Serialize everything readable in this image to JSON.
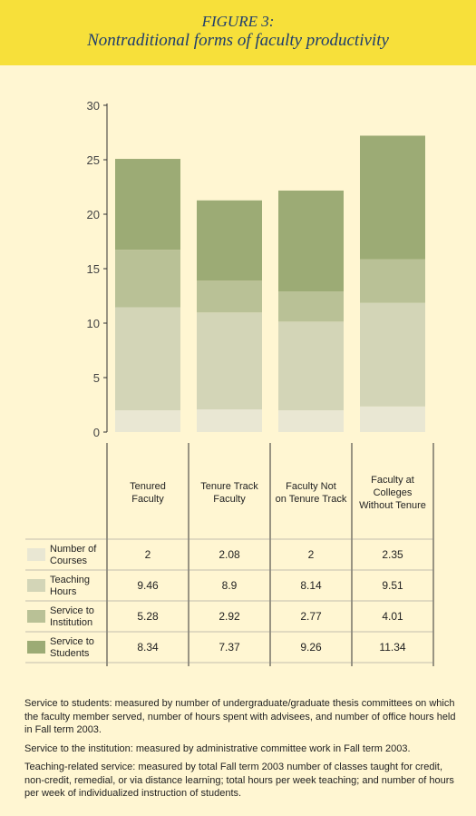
{
  "header": {
    "figure_label": "FIGURE 3:",
    "title": "Nontraditional forms of faculty productivity"
  },
  "colors": {
    "header_bg": "#f7e03a",
    "page_bg": "#fff6d2",
    "title_text": "#1e3d6e",
    "number_of_courses": "#e9e7d3",
    "teaching_hours": "#d3d5b7",
    "service_to_institution": "#b9c196",
    "service_to_students": "#9cab75"
  },
  "chart_data": {
    "type": "bar",
    "stacked": true,
    "categories": [
      "Tenured Faculty",
      "Tenure Track Faculty",
      "Faculty Not on Tenure Track",
      "Faculty at Colleges Without Tenure"
    ],
    "category_lines": [
      [
        "Tenured",
        "Faculty"
      ],
      [
        "Tenure Track",
        "Faculty"
      ],
      [
        "Faculty Not",
        "on Tenure Track"
      ],
      [
        "Faculty at",
        "Colleges",
        "Without Tenure"
      ]
    ],
    "series": [
      {
        "name": "Number of Courses",
        "name_lines": [
          "Number of",
          "Courses"
        ],
        "values": [
          2,
          2.08,
          2,
          2.35
        ]
      },
      {
        "name": "Teaching Hours",
        "name_lines": [
          "Teaching",
          "Hours"
        ],
        "values": [
          9.46,
          8.9,
          8.14,
          9.51
        ]
      },
      {
        "name": "Service to Institution",
        "name_lines": [
          "Service to",
          "Institution"
        ],
        "values": [
          5.28,
          2.92,
          2.77,
          4.01
        ]
      },
      {
        "name": "Service to Students",
        "name_lines": [
          "Service to",
          "Students"
        ],
        "values": [
          8.34,
          7.37,
          9.26,
          11.34
        ]
      }
    ],
    "ylim": [
      0,
      30
    ],
    "yticks": [
      0,
      5,
      10,
      15,
      20,
      25,
      30
    ],
    "grid": false,
    "legend": "table-below"
  },
  "notes": [
    "Service to students: measured by number of undergraduate/graduate thesis committees on which the faculty member served, number of hours spent with advisees, and number of office hours held in Fall term 2003.",
    "Service to the institution: measured by administrative committee work in Fall term 2003.",
    "Teaching-related service: measured by total Fall term 2003 number of classes taught for credit, non-credit, remedial, or via distance learning; total hours per week teaching; and number of hours per week of individualized instruction of students."
  ]
}
